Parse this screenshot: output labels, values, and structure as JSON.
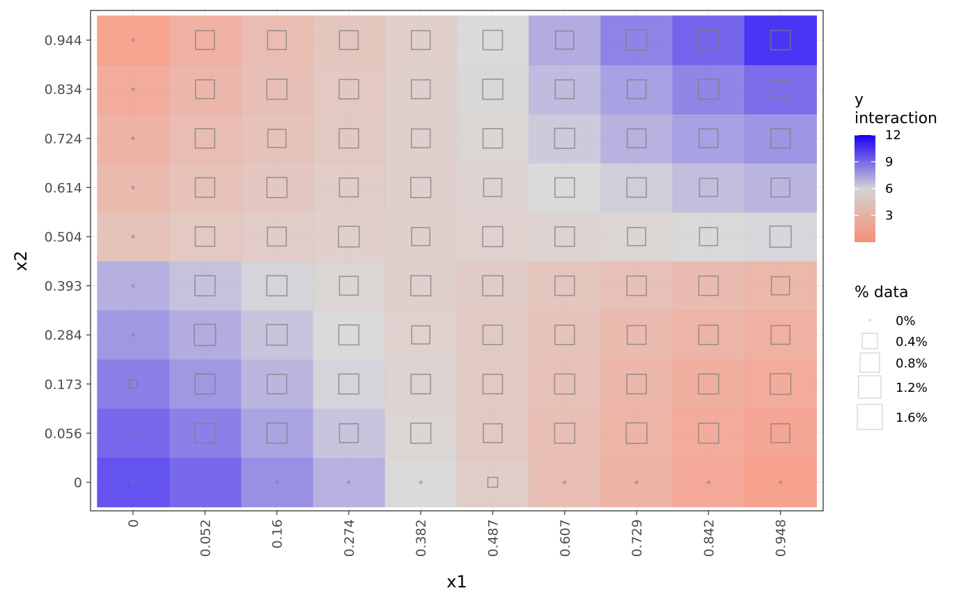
{
  "chart_data": {
    "type": "heatmap",
    "xlabel": "x1",
    "ylabel": "x2",
    "x": [
      "0",
      "0.052",
      "0.16",
      "0.274",
      "0.382",
      "0.487",
      "0.607",
      "0.729",
      "0.842",
      "0.948"
    ],
    "y": [
      "0",
      "0.056",
      "0.173",
      "0.284",
      "0.393",
      "0.504",
      "0.614",
      "0.724",
      "0.834",
      "0.944"
    ],
    "fill_values": [
      [
        10.5,
        9.8,
        8.5,
        7.3,
        6.0,
        4.7,
        3.2,
        2.0,
        1.0,
        0.3
      ],
      [
        9.8,
        9.0,
        7.8,
        6.7,
        5.6,
        4.4,
        3.2,
        2.1,
        1.2,
        0.7
      ],
      [
        9.0,
        8.2,
        7.2,
        6.2,
        5.3,
        4.3,
        3.4,
        2.4,
        1.6,
        1.2
      ],
      [
        8.2,
        7.5,
        6.7,
        6.0,
        5.1,
        4.4,
        3.6,
        2.8,
        2.2,
        1.8
      ],
      [
        7.4,
        6.8,
        6.2,
        5.6,
        5.0,
        4.5,
        4.0,
        3.4,
        2.9,
        2.5
      ],
      [
        3.7,
        4.2,
        4.6,
        4.9,
        5.0,
        5.1,
        5.4,
        5.6,
        5.9,
        6.1
      ],
      [
        2.8,
        3.5,
        4.1,
        4.6,
        5.0,
        5.4,
        6.0,
        6.4,
        6.9,
        7.2
      ],
      [
        2.0,
        3.0,
        3.7,
        4.3,
        5.0,
        5.6,
        6.5,
        7.3,
        7.9,
        8.3
      ],
      [
        1.2,
        2.4,
        3.3,
        4.2,
        5.0,
        5.8,
        7.0,
        7.9,
        8.8,
        9.6
      ],
      [
        0.4,
        1.8,
        3.0,
        4.0,
        4.9,
        6.0,
        7.5,
        8.9,
        9.9,
        11.5
      ]
    ],
    "point_values": [
      [
        0.0,
        0.0,
        0.0,
        0.0,
        0.0,
        0.1,
        0.0,
        0.0,
        0.0,
        0.0
      ],
      [
        0.0,
        1.2,
        1.2,
        1.0,
        1.2,
        1.0,
        1.2,
        1.3,
        1.2,
        1.0
      ],
      [
        0.05,
        1.2,
        1.1,
        1.2,
        1.1,
        1.1,
        1.2,
        1.1,
        1.2,
        1.3
      ],
      [
        0.0,
        1.4,
        1.3,
        1.2,
        0.9,
        1.1,
        1.1,
        1.0,
        1.1,
        1.0
      ],
      [
        0.0,
        1.2,
        1.2,
        1.0,
        1.2,
        1.2,
        1.1,
        1.1,
        1.1,
        0.9
      ],
      [
        0.0,
        1.1,
        1.0,
        1.3,
        0.9,
        1.2,
        1.1,
        0.9,
        0.9,
        1.4
      ],
      [
        0.0,
        1.1,
        1.2,
        1.0,
        1.2,
        0.9,
        1.1,
        1.1,
        0.9,
        1.0
      ],
      [
        0.0,
        1.1,
        0.9,
        1.1,
        1.0,
        1.1,
        1.2,
        1.0,
        1.0,
        1.1
      ],
      [
        0.0,
        1.0,
        1.2,
        1.1,
        1.0,
        1.2,
        1.0,
        1.0,
        1.2,
        0.9
      ],
      [
        0.0,
        1.0,
        1.0,
        1.0,
        1.0,
        1.1,
        0.9,
        1.3,
        1.1,
        1.1
      ]
    ],
    "grid": true,
    "legend": [
      {
        "title": "y\ninteraction",
        "type": "colorbar",
        "range": [
          0,
          12
        ],
        "breaks": [
          3,
          6,
          9,
          12
        ],
        "colors": [
          "#f88f76",
          "#d3d3d3",
          "#1c00f5"
        ],
        "position": "right"
      },
      {
        "title": "% data",
        "type": "size",
        "breaks": [
          0,
          0.4,
          0.8,
          1.2,
          1.6
        ],
        "labels": [
          "0%",
          "0.4%",
          "0.8%",
          "1.2%",
          "1.6%"
        ],
        "position": "right"
      }
    ]
  }
}
